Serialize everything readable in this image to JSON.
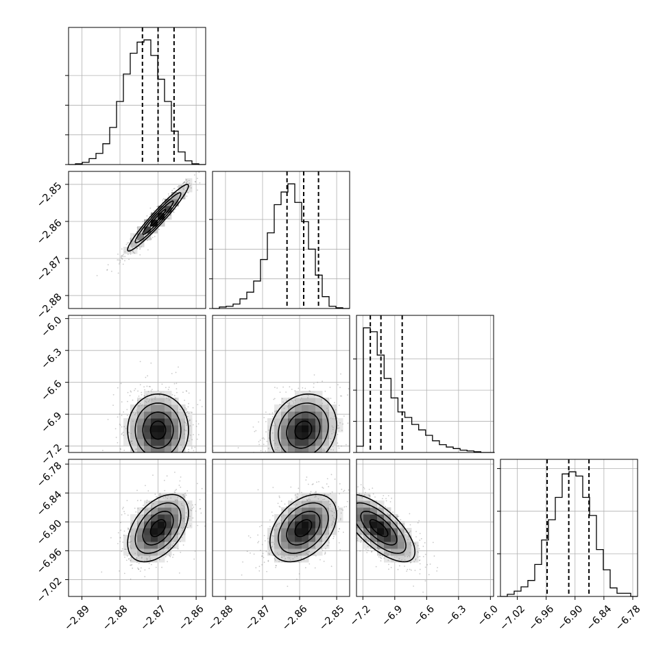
{
  "chart_data": {
    "type": "corner",
    "title": "",
    "parameters": [
      {
        "ticks": [
          "−2.89",
          "−2.88",
          "−2.87",
          "−2.86"
        ],
        "tick_values": [
          -2.89,
          -2.88,
          -2.87,
          -2.86
        ],
        "range": [
          -2.8935,
          -2.8575
        ]
      },
      {
        "ticks": [
          "−2.88",
          "−2.87",
          "−2.86",
          "−2.85"
        ],
        "tick_values": [
          -2.88,
          -2.87,
          -2.86,
          -2.85
        ],
        "range": [
          -2.8835,
          -2.8465
        ]
      },
      {
        "ticks": [
          "−7.2",
          "−6.9",
          "−6.6",
          "−6.3",
          "−6.0"
        ],
        "tick_values": [
          -7.2,
          -6.9,
          -6.6,
          -6.3,
          -6.0
        ],
        "range": [
          -7.26,
          -5.97
        ]
      },
      {
        "ticks": [
          "−7.02",
          "−6.96",
          "−6.90",
          "−6.84",
          "−6.78"
        ],
        "tick_values": [
          -7.02,
          -6.96,
          -6.9,
          -6.84,
          -6.78
        ],
        "range": [
          -7.055,
          -6.77
        ]
      }
    ],
    "marginals": [
      {
        "param": 0,
        "quantiles": [
          -2.8741,
          -2.87,
          -2.8658
        ],
        "bin_edges": [
          -2.8935,
          -2.8917,
          -2.8899,
          -2.8881,
          -2.8863,
          -2.8845,
          -2.8827,
          -2.8809,
          -2.8791,
          -2.8773,
          -2.8755,
          -2.8737,
          -2.8719,
          -2.8701,
          -2.8683,
          -2.8665,
          -2.8647,
          -2.8629,
          -2.8611,
          -2.8593,
          -2.8575
        ],
        "counts": [
          0,
          1,
          3,
          8,
          15,
          28,
          50,
          85,
          122,
          150,
          165,
          168,
          147,
          115,
          85,
          45,
          17,
          5,
          1,
          0
        ],
        "ytick_values": [
          0,
          40,
          80,
          120
        ]
      },
      {
        "param": 1,
        "quantiles": [
          -2.8634,
          -2.8589,
          -2.8549
        ],
        "bin_edges": [
          -2.8835,
          -2.88165,
          -2.8798,
          -2.87795,
          -2.8761,
          -2.87425,
          -2.8724,
          -2.87055,
          -2.8687,
          -2.86685,
          -2.865,
          -2.86315,
          -2.8613,
          -2.85945,
          -2.8576,
          -2.85575,
          -2.8539,
          -2.85205,
          -2.8502,
          -2.84835,
          -2.8465
        ],
        "counts": [
          0,
          2,
          3,
          6,
          13,
          22,
          37,
          66,
          102,
          140,
          157,
          168,
          143,
          117,
          80,
          45,
          16,
          3,
          1,
          0
        ],
        "ytick_values": [
          0,
          40,
          80,
          120
        ]
      },
      {
        "param": 2,
        "quantiles": [
          -7.13,
          -7.03,
          -6.83
        ],
        "bin_edges": [
          -7.26,
          -7.195,
          -7.13,
          -7.065,
          -7.0,
          -6.935,
          -6.87,
          -6.805,
          -6.74,
          -6.675,
          -6.61,
          -6.545,
          -6.48,
          -6.415,
          -6.35,
          -6.285,
          -6.22,
          -6.155,
          -6.09,
          -6.025,
          -5.96
        ],
        "counts": [
          8,
          160,
          155,
          125,
          95,
          70,
          52,
          45,
          36,
          29,
          22,
          15,
          10,
          7,
          5,
          3,
          2,
          1,
          0,
          0
        ],
        "ytick_values": [
          0,
          40,
          80,
          120
        ]
      },
      {
        "param": 3,
        "quantiles": [
          -6.958,
          -6.913,
          -6.871
        ],
        "bin_edges": [
          -7.055,
          -7.04075,
          -7.0265,
          -7.01225,
          -6.998,
          -6.98375,
          -6.9695,
          -6.95525,
          -6.941,
          -6.92675,
          -6.9125,
          -6.89825,
          -6.884,
          -6.86975,
          -6.8555,
          -6.84125,
          -6.827,
          -6.81275,
          -6.7985,
          -6.78425,
          -6.77
        ],
        "counts": [
          0,
          2,
          5,
          9,
          15,
          30,
          53,
          72,
          93,
          115,
          117,
          113,
          93,
          76,
          44,
          25,
          8,
          3,
          3,
          0
        ],
        "ytick_values": [
          0,
          40,
          80,
          120
        ]
      }
    ],
    "pairs": [
      {
        "x": 0,
        "y": 1,
        "center": [
          -2.87,
          -2.859
        ],
        "sigma": [
          0.004,
          0.0045
        ],
        "rho": 0.96
      },
      {
        "x": 0,
        "y": 2,
        "center": [
          -2.87,
          -7.05
        ],
        "sigma": [
          0.004,
          0.17
        ],
        "rho": 0.0
      },
      {
        "x": 1,
        "y": 2,
        "center": [
          -2.859,
          -7.05
        ],
        "sigma": [
          0.0045,
          0.17
        ],
        "rho": 0.15
      },
      {
        "x": 0,
        "y": 3,
        "center": [
          -2.87,
          -6.913
        ],
        "sigma": [
          0.004,
          0.035
        ],
        "rho": 0.45
      },
      {
        "x": 1,
        "y": 3,
        "center": [
          -2.859,
          -6.913
        ],
        "sigma": [
          0.0045,
          0.035
        ],
        "rho": 0.4
      },
      {
        "x": 2,
        "y": 3,
        "center": [
          -7.05,
          -6.913
        ],
        "sigma": [
          0.17,
          0.035
        ],
        "rho": -0.7
      }
    ],
    "contour_levels": [
      0.5,
      1.0,
      1.5,
      2.0
    ],
    "grid": true,
    "legend": "none"
  }
}
